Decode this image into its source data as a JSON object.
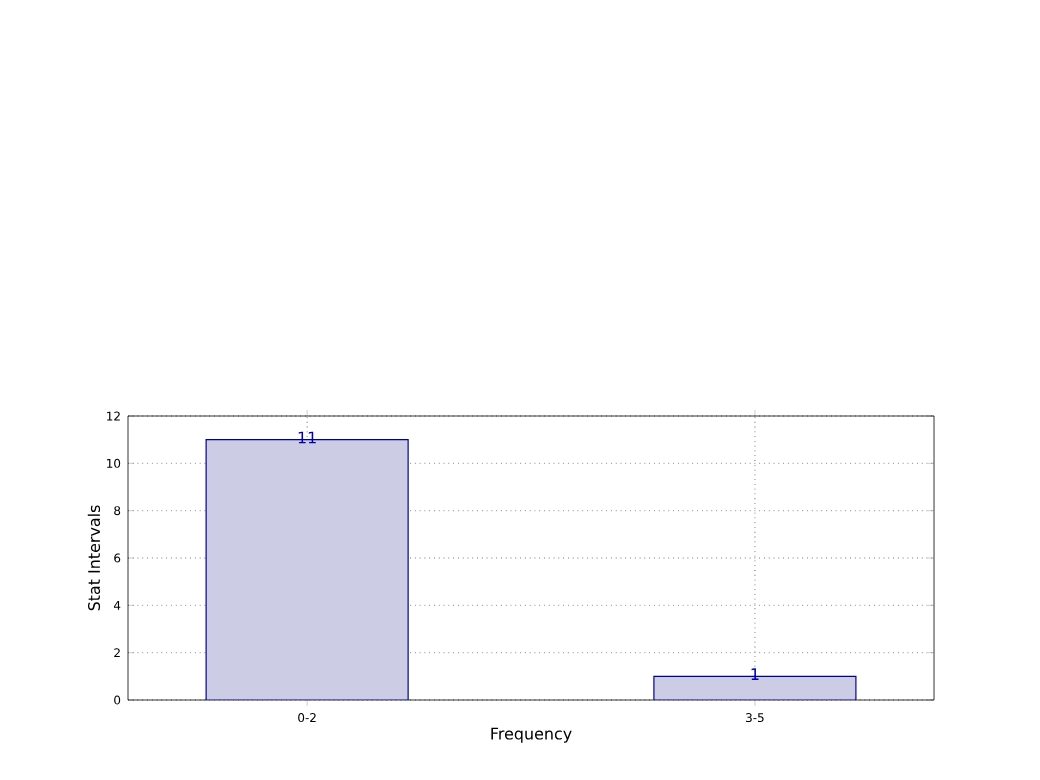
{
  "chart_data": {
    "type": "bar",
    "xlabel": "Frequency",
    "ylabel": "Stat Intervals",
    "categories": [
      "0-2",
      "3-5"
    ],
    "values": [
      11,
      1
    ],
    "color": "#cccce5",
    "ylim": [
      0,
      12
    ],
    "yticks": [
      0,
      2,
      4,
      6,
      8,
      10,
      12
    ],
    "grid": true,
    "data_labels": true
  }
}
